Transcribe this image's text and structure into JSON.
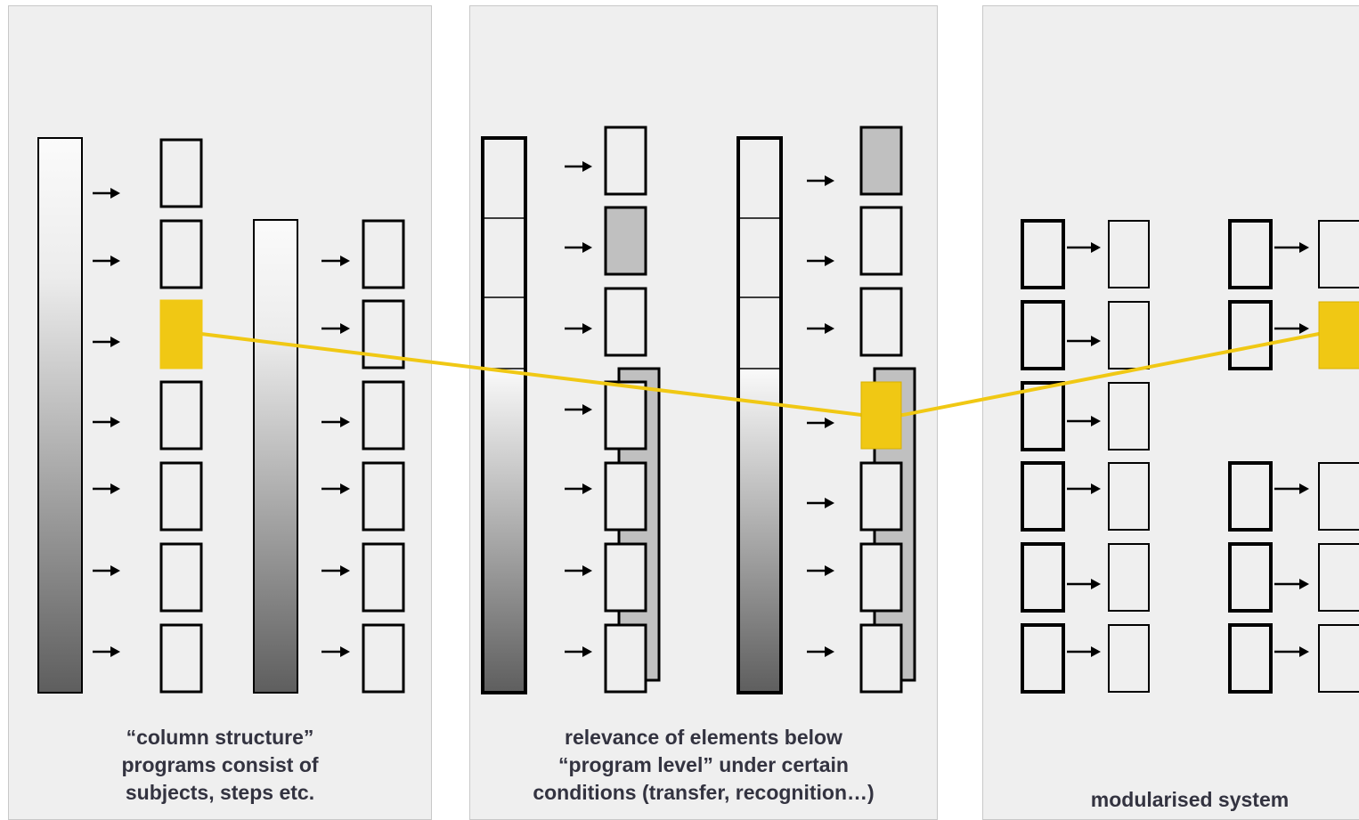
{
  "panels": [
    {
      "caption": [
        "“column structure”",
        "programs consist of",
        "subjects, steps etc."
      ]
    },
    {
      "caption": [
        "relevance of elements below",
        "“program level” under certain",
        "conditions (transfer, recognition…)"
      ]
    },
    {
      "caption": [
        "modularised system"
      ]
    }
  ],
  "colors": {
    "panel_bg": "#efefef",
    "highlight": "#f0c814",
    "shaded_box": "#c0c0c0",
    "outline": "#000000",
    "text": "#333340"
  },
  "icons": [
    "arrow-right-icon"
  ]
}
